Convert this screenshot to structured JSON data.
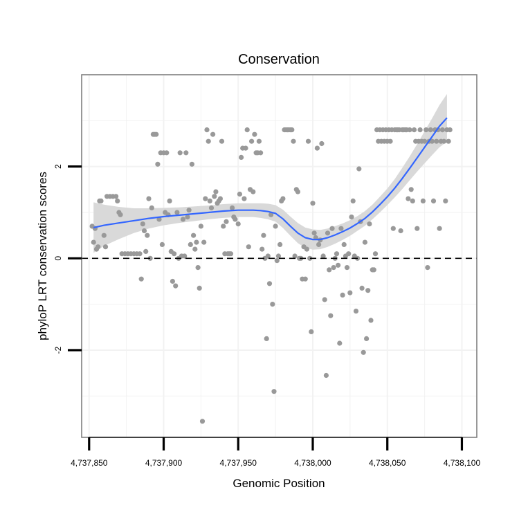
{
  "chart_data": {
    "type": "scatter",
    "title": "Conservation",
    "xlabel": "Genomic Position",
    "ylabel": "phyloP LRT conservation scores",
    "xlim": [
      4737845,
      4738110
    ],
    "ylim": [
      -3.9,
      4.0
    ],
    "x_ticks": [
      4737850,
      4737900,
      4737950,
      4738000,
      4738050,
      4738100
    ],
    "x_tick_labels": [
      "4,737,850",
      "4,737,900",
      "4,737,950",
      "4,738,000",
      "4,738,050",
      "4,738,100"
    ],
    "y_ticks": [
      -2,
      0,
      2
    ],
    "y_tick_labels": [
      "-2",
      "0",
      "2"
    ],
    "reference_line": {
      "y": 0,
      "style": "dashed"
    },
    "colors": {
      "points": "#999999",
      "smooth": "#3366FF",
      "ribbon": "#d9d9d9",
      "panel_border": "#7f7f7f",
      "grid": "#f2f2f2",
      "refline": "#000000"
    },
    "points": [
      [
        4737852,
        0.7
      ],
      [
        4737853,
        0.35
      ],
      [
        4737854,
        0.65
      ],
      [
        4737855,
        0.2
      ],
      [
        4737856,
        0.25
      ],
      [
        4737857,
        1.25
      ],
      [
        4737858,
        1.25
      ],
      [
        4737860,
        0.5
      ],
      [
        4737861,
        0.25
      ],
      [
        4737862,
        1.35
      ],
      [
        4737864,
        1.35
      ],
      [
        4737866,
        1.35
      ],
      [
        4737868,
        1.35
      ],
      [
        4737869,
        1.25
      ],
      [
        4737870,
        1.0
      ],
      [
        4737871,
        0.95
      ],
      [
        4737872,
        0.1
      ],
      [
        4737874,
        0.1
      ],
      [
        4737876,
        0.1
      ],
      [
        4737878,
        0.1
      ],
      [
        4737880,
        0.1
      ],
      [
        4737882,
        0.1
      ],
      [
        4737884,
        0.1
      ],
      [
        4737885,
        -0.45
      ],
      [
        4737886,
        0.75
      ],
      [
        4737887,
        0.6
      ],
      [
        4737888,
        0.15
      ],
      [
        4737889,
        0.5
      ],
      [
        4737890,
        1.3
      ],
      [
        4737891,
        0.0
      ],
      [
        4737892,
        1.1
      ],
      [
        4737893,
        2.7
      ],
      [
        4737894,
        2.7
      ],
      [
        4737895,
        2.7
      ],
      [
        4737896,
        2.05
      ],
      [
        4737897,
        0.85
      ],
      [
        4737898,
        2.3
      ],
      [
        4737899,
        0.3
      ],
      [
        4737900,
        2.3
      ],
      [
        4737901,
        1.0
      ],
      [
        4737902,
        2.3
      ],
      [
        4737903,
        0.95
      ],
      [
        4737904,
        1.25
      ],
      [
        4737905,
        0.15
      ],
      [
        4737906,
        -0.5
      ],
      [
        4737907,
        0.1
      ],
      [
        4737908,
        -0.6
      ],
      [
        4737909,
        1.0
      ],
      [
        4737910,
        0.0
      ],
      [
        4737911,
        2.3
      ],
      [
        4737912,
        0.05
      ],
      [
        4737913,
        0.85
      ],
      [
        4737914,
        0.05
      ],
      [
        4737915,
        2.3
      ],
      [
        4737916,
        0.9
      ],
      [
        4737917,
        1.05
      ],
      [
        4737918,
        0.3
      ],
      [
        4737919,
        2.05
      ],
      [
        4737920,
        0.5
      ],
      [
        4737921,
        0.2
      ],
      [
        4737922,
        0.35
      ],
      [
        4737923,
        -0.2
      ],
      [
        4737924,
        -0.65
      ],
      [
        4737925,
        0.7
      ],
      [
        4737926,
        -3.55
      ],
      [
        4737927,
        0.35
      ],
      [
        4737928,
        1.3
      ],
      [
        4737929,
        2.8
      ],
      [
        4737930,
        2.55
      ],
      [
        4737931,
        1.25
      ],
      [
        4737932,
        1.1
      ],
      [
        4737933,
        2.7
      ],
      [
        4737934,
        1.35
      ],
      [
        4737935,
        1.45
      ],
      [
        4737936,
        1.2
      ],
      [
        4737937,
        1.25
      ],
      [
        4737938,
        1.3
      ],
      [
        4737939,
        2.55
      ],
      [
        4737940,
        0.7
      ],
      [
        4737941,
        0.1
      ],
      [
        4737942,
        0.8
      ],
      [
        4737943,
        0.1
      ],
      [
        4737944,
        0.1
      ],
      [
        4737945,
        0.1
      ],
      [
        4737946,
        1.1
      ],
      [
        4737947,
        0.9
      ],
      [
        4737948,
        0.85
      ],
      [
        4737950,
        0.75
      ],
      [
        4737951,
        1.4
      ],
      [
        4737952,
        2.2
      ],
      [
        4737953,
        2.4
      ],
      [
        4737954,
        1.3
      ],
      [
        4737955,
        2.4
      ],
      [
        4737956,
        2.8
      ],
      [
        4737957,
        0.25
      ],
      [
        4737958,
        1.5
      ],
      [
        4737959,
        2.55
      ],
      [
        4737960,
        1.45
      ],
      [
        4737961,
        2.7
      ],
      [
        4737962,
        2.3
      ],
      [
        4737963,
        2.3
      ],
      [
        4737964,
        2.55
      ],
      [
        4737965,
        2.3
      ],
      [
        4737966,
        0.2
      ],
      [
        4737967,
        0.5
      ],
      [
        4737968,
        0.0
      ],
      [
        4737969,
        -1.75
      ],
      [
        4737970,
        0.05
      ],
      [
        4737971,
        -0.55
      ],
      [
        4737972,
        0.95
      ],
      [
        4737973,
        -1.0
      ],
      [
        4737974,
        -2.9
      ],
      [
        4737975,
        0.7
      ],
      [
        4737976,
        -0.05
      ],
      [
        4737977,
        0.05
      ],
      [
        4737978,
        0.3
      ],
      [
        4737979,
        1.25
      ],
      [
        4737980,
        1.3
      ],
      [
        4737981,
        2.8
      ],
      [
        4737982,
        2.8
      ],
      [
        4737983,
        2.8
      ],
      [
        4737984,
        2.8
      ],
      [
        4737985,
        2.8
      ],
      [
        4737986,
        2.8
      ],
      [
        4737987,
        2.55
      ],
      [
        4737988,
        0.05
      ],
      [
        4737989,
        1.5
      ],
      [
        4737990,
        1.45
      ],
      [
        4737991,
        0.0
      ],
      [
        4737992,
        0.0
      ],
      [
        4737993,
        -0.45
      ],
      [
        4737994,
        0.25
      ],
      [
        4737995,
        -0.45
      ],
      [
        4737996,
        0.2
      ],
      [
        4737997,
        2.55
      ],
      [
        4737998,
        0.0
      ],
      [
        4737999,
        -1.6
      ],
      [
        4738000,
        1.2
      ],
      [
        4738001,
        0.55
      ],
      [
        4738002,
        0.45
      ],
      [
        4738003,
        2.4
      ],
      [
        4738004,
        0.3
      ],
      [
        4738005,
        0.4
      ],
      [
        4738006,
        2.5
      ],
      [
        4738007,
        0.05
      ],
      [
        4738008,
        -0.9
      ],
      [
        4738009,
        -2.55
      ],
      [
        4738010,
        0.55
      ],
      [
        4738011,
        -0.25
      ],
      [
        4738012,
        -1.25
      ],
      [
        4738013,
        0.65
      ],
      [
        4738014,
        -0.2
      ],
      [
        4738015,
        0.0
      ],
      [
        4738016,
        0.1
      ],
      [
        4738017,
        -0.15
      ],
      [
        4738018,
        -1.85
      ],
      [
        4738019,
        0.65
      ],
      [
        4738020,
        -0.8
      ],
      [
        4738021,
        0.3
      ],
      [
        4738022,
        0.05
      ],
      [
        4738023,
        -0.2
      ],
      [
        4738024,
        0.1
      ],
      [
        4738025,
        -0.75
      ],
      [
        4738026,
        0.9
      ],
      [
        4738027,
        1.25
      ],
      [
        4738028,
        0.05
      ],
      [
        4738029,
        -1.15
      ],
      [
        4738030,
        0.0
      ],
      [
        4738031,
        1.95
      ],
      [
        4738032,
        0.8
      ],
      [
        4738033,
        -0.65
      ],
      [
        4738034,
        -2.05
      ],
      [
        4738035,
        0.35
      ],
      [
        4738036,
        -1.75
      ],
      [
        4738037,
        -0.7
      ],
      [
        4738038,
        0.75
      ],
      [
        4738039,
        -1.35
      ],
      [
        4738040,
        -0.25
      ],
      [
        4738041,
        -0.25
      ],
      [
        4738042,
        0.1
      ],
      [
        4738043,
        2.8
      ],
      [
        4738044,
        2.55
      ],
      [
        4738045,
        2.8
      ],
      [
        4738046,
        2.55
      ],
      [
        4738047,
        2.8
      ],
      [
        4738048,
        2.55
      ],
      [
        4738049,
        2.8
      ],
      [
        4738050,
        2.55
      ],
      [
        4738051,
        2.8
      ],
      [
        4738052,
        2.55
      ],
      [
        4738053,
        2.8
      ],
      [
        4738054,
        0.65
      ],
      [
        4738055,
        2.8
      ],
      [
        4738056,
        2.8
      ],
      [
        4738057,
        2.8
      ],
      [
        4738058,
        2.8
      ],
      [
        4738059,
        0.6
      ],
      [
        4738060,
        2.8
      ],
      [
        4738061,
        2.8
      ],
      [
        4738062,
        2.8
      ],
      [
        4738063,
        2.8
      ],
      [
        4738064,
        1.3
      ],
      [
        4738065,
        2.8
      ],
      [
        4738066,
        1.5
      ],
      [
        4738067,
        1.25
      ],
      [
        4738068,
        2.8
      ],
      [
        4738069,
        2.55
      ],
      [
        4738070,
        0.65
      ],
      [
        4738071,
        2.55
      ],
      [
        4738072,
        2.8
      ],
      [
        4738073,
        2.55
      ],
      [
        4738074,
        1.25
      ],
      [
        4738075,
        2.55
      ],
      [
        4738076,
        2.8
      ],
      [
        4738077,
        -0.2
      ],
      [
        4738078,
        2.55
      ],
      [
        4738079,
        2.8
      ],
      [
        4738080,
        2.55
      ],
      [
        4738081,
        1.25
      ],
      [
        4738082,
        2.8
      ],
      [
        4738083,
        2.55
      ],
      [
        4738084,
        2.8
      ],
      [
        4738085,
        0.65
      ],
      [
        4738086,
        2.55
      ],
      [
        4738087,
        2.8
      ],
      [
        4738088,
        2.55
      ],
      [
        4738089,
        1.25
      ],
      [
        4738090,
        2.8
      ],
      [
        4738091,
        2.55
      ],
      [
        4738092,
        2.8
      ]
    ],
    "smooth": [
      [
        4737853,
        0.67
      ],
      [
        4737860,
        0.72
      ],
      [
        4737870,
        0.77
      ],
      [
        4737880,
        0.82
      ],
      [
        4737890,
        0.87
      ],
      [
        4737900,
        0.91
      ],
      [
        4737910,
        0.94
      ],
      [
        4737920,
        0.97
      ],
      [
        4737930,
        1.0
      ],
      [
        4737940,
        1.03
      ],
      [
        4737950,
        1.05
      ],
      [
        4737960,
        1.05
      ],
      [
        4737965,
        1.04
      ],
      [
        4737970,
        1.02
      ],
      [
        4737975,
        0.98
      ],
      [
        4737980,
        0.86
      ],
      [
        4737985,
        0.7
      ],
      [
        4737990,
        0.55
      ],
      [
        4737995,
        0.45
      ],
      [
        4738000,
        0.41
      ],
      [
        4738005,
        0.41
      ],
      [
        4738010,
        0.45
      ],
      [
        4738015,
        0.51
      ],
      [
        4738020,
        0.58
      ],
      [
        4738025,
        0.66
      ],
      [
        4738030,
        0.76
      ],
      [
        4738035,
        0.87
      ],
      [
        4738040,
        1.01
      ],
      [
        4738045,
        1.17
      ],
      [
        4738050,
        1.34
      ],
      [
        4738055,
        1.53
      ],
      [
        4738060,
        1.74
      ],
      [
        4738065,
        1.96
      ],
      [
        4738070,
        2.19
      ],
      [
        4738075,
        2.42
      ],
      [
        4738080,
        2.65
      ],
      [
        4738085,
        2.88
      ],
      [
        4738090,
        3.06
      ]
    ],
    "ribbon_halfwidth": [
      0.55,
      0.45,
      0.35,
      0.27,
      0.22,
      0.19,
      0.17,
      0.16,
      0.15,
      0.15,
      0.15,
      0.15,
      0.16,
      0.17,
      0.18,
      0.2,
      0.21,
      0.22,
      0.22,
      0.22,
      0.21,
      0.2,
      0.19,
      0.18,
      0.17,
      0.16,
      0.16,
      0.16,
      0.17,
      0.18,
      0.2,
      0.23,
      0.26,
      0.3,
      0.35,
      0.4,
      0.46,
      0.52
    ]
  }
}
